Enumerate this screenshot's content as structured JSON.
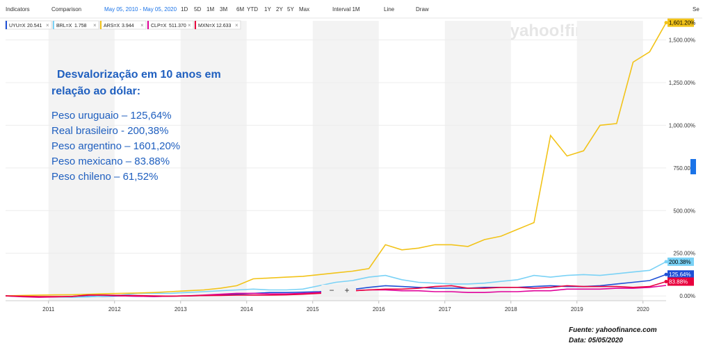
{
  "toolbar": {
    "indicators": "Indicators",
    "comparison": "Comparison",
    "date_range": "May 05, 2010 - May 05, 2020",
    "ranges": [
      "1D",
      "5D",
      "1M",
      "3M",
      "6M",
      "YTD",
      "1Y",
      "2Y",
      "5Y",
      "Max"
    ],
    "interval": "Interval",
    "interval_value": "1M",
    "line": "Line",
    "draw": "Draw",
    "settings": "Se",
    "zoom_out": "−",
    "zoom_in": "+"
  },
  "watermark": "yahoo!finance",
  "annotation": {
    "heading": [
      "Desvalorização em 10 anos em",
      "relação ao dólar:"
    ],
    "lines": [
      "Peso uruguaio – 125,64%",
      "Real brasileiro -  200,38%",
      "Peso argentino – 1601,20%",
      "Peso mexicano – 83.88%",
      "Peso chileno – 61,52%"
    ]
  },
  "footer": {
    "source": "Fuente: yahoofinance.com",
    "date": "Data: 05/05/2020"
  },
  "chart_data": {
    "type": "line",
    "x": [
      2010.35,
      2010.6,
      2010.85,
      2011.1,
      2011.35,
      2011.6,
      2011.85,
      2012.1,
      2012.35,
      2012.6,
      2012.85,
      2013.1,
      2013.35,
      2013.6,
      2013.85,
      2014.1,
      2014.35,
      2014.6,
      2014.85,
      2015.1,
      2015.35,
      2015.6,
      2015.85,
      2016.1,
      2016.35,
      2016.6,
      2016.85,
      2017.1,
      2017.35,
      2017.6,
      2017.85,
      2018.1,
      2018.35,
      2018.6,
      2018.85,
      2019.1,
      2019.35,
      2019.6,
      2019.85,
      2020.1,
      2020.35
    ],
    "xlim": [
      2010.35,
      2020.35
    ],
    "xticks": [
      2011,
      2012,
      2013,
      2014,
      2015,
      2016,
      2017,
      2018,
      2019,
      2020
    ],
    "ylim": [
      -28,
      1612
    ],
    "yticks": [
      {
        "value": 0,
        "label": "0.00%"
      },
      {
        "value": 250,
        "label": "250.00%"
      },
      {
        "value": 500,
        "label": "500.00%"
      },
      {
        "value": 750,
        "label": "750.00%"
      },
      {
        "value": 1000,
        "label": "1,000.00%"
      },
      {
        "value": 1250,
        "label": "1,250.00%"
      },
      {
        "value": 1500,
        "label": "1,500.00%"
      }
    ],
    "grid": true,
    "series": [
      {
        "name": "UYU=X",
        "legend_value": "20.541",
        "color": "#1d4fd6",
        "values": [
          0,
          -3,
          -5,
          -6,
          -5,
          -4,
          -2,
          0,
          -2,
          -3,
          -1,
          0,
          2,
          5,
          10,
          15,
          20,
          20,
          22,
          25,
          30,
          38,
          50,
          60,
          55,
          50,
          45,
          45,
          45,
          50,
          50,
          50,
          55,
          60,
          55,
          55,
          60,
          70,
          80,
          90,
          125.64
        ],
        "value_labels": [
          null,
          null,
          null,
          null,
          null,
          null,
          null,
          null,
          null,
          null,
          null,
          null,
          null,
          null,
          null,
          null,
          null,
          null,
          null,
          null,
          null,
          null,
          null,
          null,
          null,
          null,
          null,
          null,
          null,
          null,
          null,
          null,
          null,
          null,
          null,
          null,
          null,
          null,
          null,
          null,
          "125.64%"
        ]
      },
      {
        "name": "BRL=X",
        "legend_value": "1.758",
        "color": "#7ad2f6",
        "values": [
          0,
          -2,
          -5,
          -6,
          -8,
          -6,
          0,
          5,
          15,
          15,
          15,
          20,
          25,
          30,
          35,
          40,
          35,
          35,
          40,
          60,
          80,
          90,
          110,
          120,
          95,
          80,
          75,
          70,
          70,
          75,
          85,
          95,
          120,
          110,
          120,
          125,
          120,
          130,
          140,
          150,
          200.38
        ],
        "value_labels": [
          null,
          null,
          null,
          null,
          null,
          null,
          null,
          null,
          null,
          null,
          null,
          null,
          null,
          null,
          null,
          null,
          null,
          null,
          null,
          null,
          null,
          null,
          null,
          null,
          null,
          null,
          null,
          null,
          null,
          null,
          null,
          null,
          null,
          null,
          null,
          null,
          null,
          null,
          null,
          null,
          "200.38%"
        ]
      },
      {
        "name": "ARS=X",
        "legend_value": "3.944",
        "color": "#f2c318",
        "values": [
          0,
          3,
          5,
          6,
          7,
          10,
          13,
          15,
          17,
          20,
          25,
          30,
          35,
          45,
          60,
          100,
          105,
          110,
          115,
          125,
          135,
          145,
          160,
          300,
          270,
          280,
          300,
          300,
          290,
          330,
          350,
          390,
          430,
          940,
          820,
          850,
          1000,
          1010,
          1370,
          1430,
          1601.2
        ],
        "value_labels": [
          null,
          null,
          null,
          null,
          null,
          null,
          null,
          null,
          null,
          null,
          null,
          null,
          null,
          null,
          null,
          null,
          null,
          null,
          null,
          null,
          null,
          null,
          null,
          null,
          null,
          null,
          null,
          null,
          null,
          null,
          null,
          null,
          null,
          null,
          null,
          null,
          null,
          null,
          null,
          null,
          "1,601.20%"
        ]
      },
      {
        "name": "CLP=X",
        "legend_value": "511.370",
        "color": "#e0009a",
        "values": [
          0,
          -5,
          -8,
          -6,
          -3,
          5,
          5,
          0,
          -2,
          -3,
          -1,
          0,
          5,
          10,
          15,
          15,
          12,
          12,
          15,
          20,
          25,
          30,
          35,
          35,
          30,
          30,
          25,
          25,
          20,
          20,
          25,
          25,
          30,
          30,
          40,
          40,
          40,
          45,
          45,
          50,
          61.52
        ]
      },
      {
        "name": "MXN=X",
        "legend_value": "12.633",
        "color": "#e8003d",
        "values": [
          0,
          -2,
          -4,
          -4,
          -3,
          5,
          5,
          3,
          2,
          0,
          -1,
          0,
          2,
          3,
          5,
          5,
          5,
          6,
          10,
          15,
          20,
          30,
          35,
          40,
          40,
          45,
          55,
          60,
          45,
          45,
          50,
          50,
          45,
          50,
          60,
          55,
          55,
          55,
          50,
          55,
          83.88
        ],
        "value_labels": [
          null,
          null,
          null,
          null,
          null,
          null,
          null,
          null,
          null,
          null,
          null,
          null,
          null,
          null,
          null,
          null,
          null,
          null,
          null,
          null,
          null,
          null,
          null,
          null,
          null,
          null,
          null,
          null,
          null,
          null,
          null,
          null,
          null,
          null,
          null,
          null,
          null,
          null,
          null,
          null,
          "83.88%"
        ]
      }
    ]
  }
}
